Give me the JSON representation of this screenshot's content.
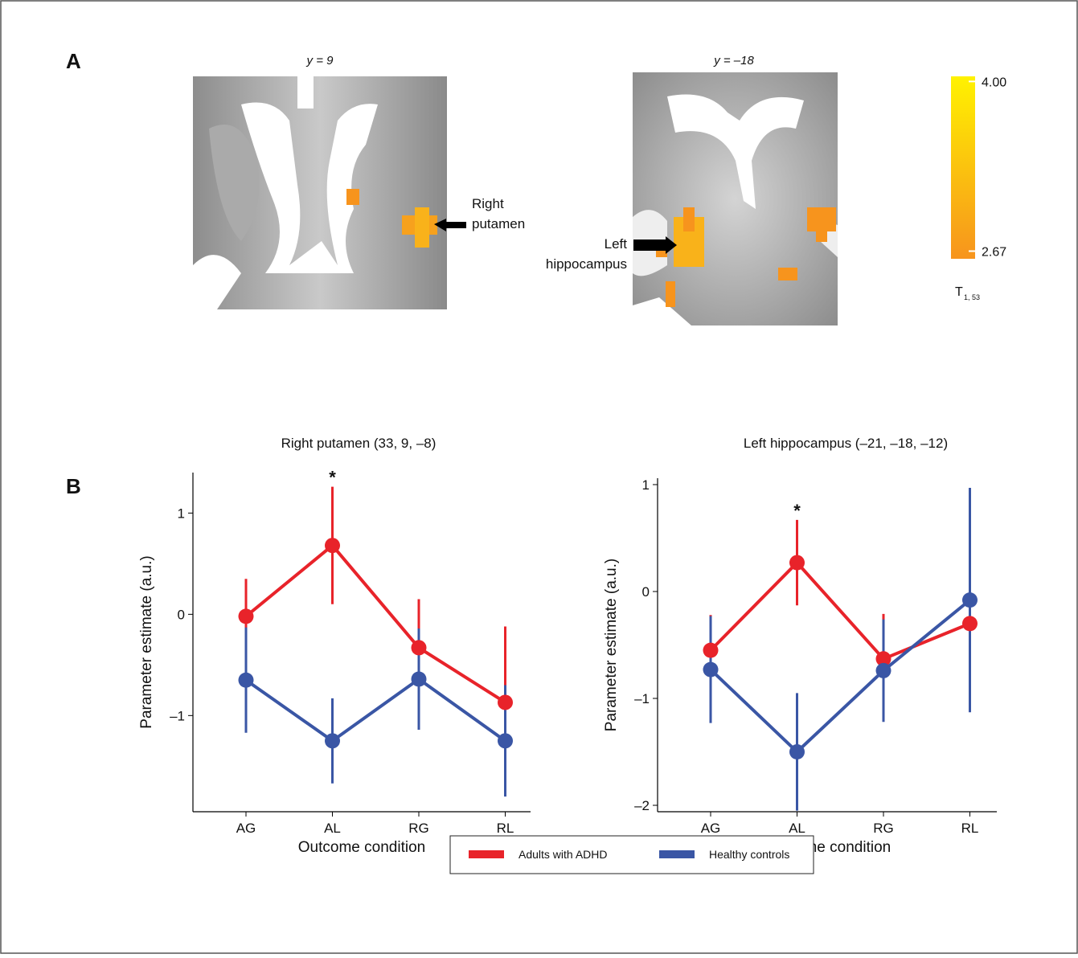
{
  "panel_labels": [
    "A",
    "B"
  ],
  "brain_images": [
    {
      "title": "y = 9",
      "annotation": [
        "Right",
        "putamen"
      ]
    },
    {
      "title": "y = –18",
      "annotation": [
        "Left",
        "hippocampus"
      ]
    }
  ],
  "colorbar": {
    "lim": [
      2.61,
      4.04
    ],
    "ticks": [
      {
        "value": 4.0,
        "label": "4.00"
      },
      {
        "value": 2.67,
        "label": "2.67"
      }
    ],
    "label": "T",
    "label_subscript": "1, 53",
    "colors": [
      "#f7941d",
      "#fff200"
    ]
  },
  "chart_data": [
    {
      "type": "line",
      "title": "Right putamen (33, 9, –8)",
      "xlabel": "Outcome condition",
      "ylabel": "Parameter estimate (a.u.)",
      "categories": [
        "AG",
        "AL",
        "RG",
        "RL"
      ],
      "ylim": [
        -1.95,
        1.4
      ],
      "yticks": [
        {
          "value": -1,
          "label": "–1"
        },
        0,
        1
      ],
      "annotation": "*",
      "series": [
        {
          "name": "Adults with ADHD",
          "color": "#e8232a",
          "values": [
            -0.02,
            0.68,
            -0.33,
            -0.87
          ],
          "errors": [
            0.37,
            0.58,
            0.48,
            0.75
          ]
        },
        {
          "name": "Healthy controls",
          "color": "#3a56a5",
          "values": [
            -0.65,
            -1.25,
            -0.64,
            -1.25
          ],
          "errors": [
            0.52,
            0.42,
            0.5,
            0.55
          ]
        }
      ]
    },
    {
      "type": "line",
      "title": "Left hippocampus (–21, –18, –12)",
      "xlabel": "Outcome condition",
      "ylabel": "Parameter estimate (a.u.)",
      "categories": [
        "AG",
        "AL",
        "RG",
        "RL"
      ],
      "ylim": [
        -2.06,
        1.06
      ],
      "yticks": [
        {
          "value": -2,
          "label": "–2"
        },
        {
          "value": -1,
          "label": "–1"
        },
        0,
        1
      ],
      "annotation": "*",
      "series": [
        {
          "name": "Adults with ADHD",
          "color": "#e8232a",
          "values": [
            -0.55,
            0.27,
            -0.63,
            -0.3
          ],
          "errors": [
            0.33,
            0.4,
            0.42,
            0.74
          ]
        },
        {
          "name": "Healthy controls",
          "color": "#3a56a5",
          "values": [
            -0.73,
            -1.5,
            -0.74,
            -0.08
          ],
          "errors": [
            0.5,
            0.55,
            0.48,
            1.05
          ]
        }
      ]
    }
  ]
}
